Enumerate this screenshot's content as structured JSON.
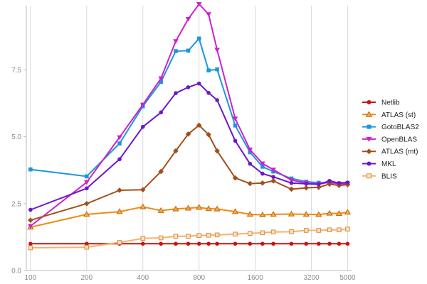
{
  "chart_data": {
    "type": "line",
    "title": "",
    "xlabel": "",
    "ylabel": "",
    "x_scale": "log",
    "x_ticks": [
      100,
      200,
      400,
      800,
      1600,
      3200,
      5000
    ],
    "x_tick_labels": [
      "100",
      "200",
      "400",
      "800",
      "1600",
      "3200",
      "5000"
    ],
    "y_ticks": [
      0,
      2.5,
      5,
      7.5
    ],
    "y_tick_labels": [
      "0.0",
      "2.5",
      "5.0",
      "7.5"
    ],
    "xlim": [
      95,
      5250
    ],
    "ylim": [
      0,
      9.9
    ],
    "grid": "x-major",
    "legend_position": "right",
    "x": [
      100,
      200,
      300,
      400,
      500,
      600,
      700,
      800,
      900,
      1000,
      1250,
      1500,
      1750,
      2000,
      2500,
      3000,
      3500,
      4000,
      4500,
      5000
    ],
    "series": [
      {
        "name": "Netlib",
        "color": "#cc1111",
        "marker": "circle",
        "values": [
          1.0,
          1.0,
          1.0,
          1.0,
          1.0,
          1.0,
          1.0,
          1.0,
          1.0,
          1.0,
          1.0,
          1.0,
          1.0,
          1.0,
          1.0,
          1.0,
          1.0,
          1.0,
          1.0,
          1.0
        ]
      },
      {
        "name": "ATLAS (st)",
        "color": "#f08a14",
        "marker": "triangle-up",
        "values": [
          1.62,
          2.1,
          2.2,
          2.38,
          2.24,
          2.3,
          2.33,
          2.36,
          2.31,
          2.3,
          2.2,
          2.1,
          2.08,
          2.1,
          2.11,
          2.1,
          2.09,
          2.14,
          2.13,
          2.18
        ]
      },
      {
        "name": "GotoBLAS2",
        "color": "#1e96dc",
        "marker": "square",
        "values": [
          3.78,
          3.52,
          4.75,
          6.14,
          7.05,
          8.2,
          8.22,
          8.67,
          7.48,
          7.52,
          5.42,
          4.42,
          3.88,
          3.7,
          3.44,
          3.32,
          3.28,
          3.28,
          3.25,
          3.27
        ]
      },
      {
        "name": "OpenBLAS",
        "color": "#cc22cc",
        "marker": "triangle-down",
        "values": [
          1.66,
          3.3,
          4.98,
          6.2,
          7.18,
          8.57,
          9.4,
          9.96,
          9.58,
          8.25,
          5.68,
          4.52,
          4.0,
          3.77,
          3.38,
          3.27,
          3.23,
          3.3,
          3.24,
          3.24
        ]
      },
      {
        "name": "ATLAS (mt)",
        "color": "#a0501a",
        "marker": "diamond",
        "values": [
          1.88,
          2.5,
          3.0,
          3.02,
          3.7,
          4.47,
          5.1,
          5.43,
          5.08,
          4.47,
          3.46,
          3.25,
          3.27,
          3.35,
          3.04,
          3.09,
          3.11,
          3.23,
          3.18,
          3.21
        ]
      },
      {
        "name": "MKL",
        "color": "#6a17c9",
        "marker": "circle",
        "values": [
          2.27,
          3.07,
          4.16,
          5.37,
          5.91,
          6.63,
          6.85,
          6.99,
          6.64,
          6.37,
          4.85,
          3.99,
          3.62,
          3.5,
          3.27,
          3.24,
          3.22,
          3.35,
          3.27,
          3.29
        ]
      },
      {
        "name": "BLIS",
        "color": "#f5b26b",
        "marker": "square-open",
        "values": [
          0.85,
          0.87,
          1.05,
          1.2,
          1.22,
          1.28,
          1.28,
          1.31,
          1.32,
          1.33,
          1.36,
          1.39,
          1.41,
          1.44,
          1.45,
          1.5,
          1.5,
          1.52,
          1.52,
          1.55
        ]
      }
    ]
  }
}
